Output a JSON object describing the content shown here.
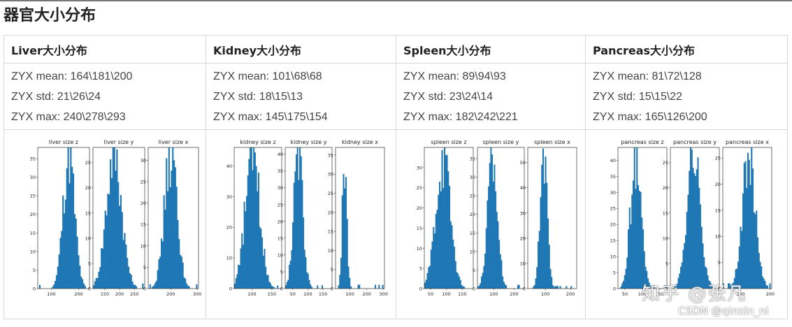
{
  "page": {
    "title": "器官大小分布"
  },
  "colors": {
    "bar": "#1f77b4",
    "axis": "#333333",
    "grid_border": "#d8d8d8"
  },
  "organs": [
    {
      "header": "Liver大小分布",
      "stats": [
        "ZYX mean: 164\\181\\200",
        "ZYX std: 21\\26\\24",
        "ZYX max: 240\\278\\293"
      ]
    },
    {
      "header": "Kidney大小分布",
      "stats": [
        "ZYX mean: 101\\68\\68",
        "ZYX std: 18\\15\\13",
        "ZYX max: 145\\175\\154"
      ]
    },
    {
      "header": "Spleen大小分布",
      "stats": [
        "ZYX mean: 89\\94\\93",
        "ZYX std: 23\\24\\14",
        "ZYX max: 182\\242\\221"
      ]
    },
    {
      "header": "Pancreas大小分布",
      "stats": [
        "ZYX mean: 81\\72\\128",
        "ZYX std: 15\\15\\22",
        "ZYX max: 165\\126\\200"
      ]
    }
  ],
  "chart_data": [
    {
      "type": "bar",
      "title": "liver size z",
      "xticks": [
        100,
        200
      ],
      "yticks": [
        0,
        5,
        10,
        15,
        20,
        25,
        30,
        35
      ],
      "xlim": [
        50,
        240
      ],
      "ylim": [
        0,
        38
      ],
      "mean": 164,
      "std": 21,
      "peak": 36
    },
    {
      "type": "bar",
      "title": "liver size y",
      "xticks": [
        150,
        200,
        250
      ],
      "yticks": [
        0,
        5,
        10,
        15,
        20,
        25
      ],
      "xlim": [
        110,
        285
      ],
      "ylim": [
        0,
        28
      ],
      "mean": 181,
      "std": 26,
      "peak": 27
    },
    {
      "type": "bar",
      "title": "liver size x",
      "xticks": [
        200,
        300
      ],
      "yticks": [
        0,
        5,
        10,
        15,
        20,
        25,
        30
      ],
      "xlim": [
        115,
        305
      ],
      "ylim": [
        0,
        33
      ],
      "mean": 200,
      "std": 24,
      "peak": 31
    },
    {
      "type": "bar",
      "title": "kidney size z",
      "xticks": [
        100,
        150
      ],
      "yticks": [
        0,
        10,
        20,
        30,
        40
      ],
      "xlim": [
        55,
        175
      ],
      "ylim": [
        0,
        46
      ],
      "mean": 101,
      "std": 18,
      "peak": 44
    },
    {
      "type": "bar",
      "title": "kidney size y",
      "xticks": [
        50,
        100,
        150
      ],
      "yticks": [
        0,
        5,
        10,
        15,
        20,
        25,
        30,
        35,
        40
      ],
      "xlim": [
        25,
        180
      ],
      "ylim": [
        0,
        42
      ],
      "mean": 68,
      "std": 15,
      "peak": 40
    },
    {
      "type": "bar",
      "title": "kidney size x",
      "xticks": [
        100,
        200,
        300
      ],
      "yticks": [
        0,
        5,
        10,
        15,
        20,
        25,
        30,
        35
      ],
      "xlim": [
        15,
        305
      ],
      "ylim": [
        0,
        37
      ],
      "mean": 68,
      "std": 13,
      "peak": 35
    },
    {
      "type": "bar",
      "title": "spleen size z",
      "xticks": [
        50,
        100,
        150
      ],
      "yticks": [
        0,
        5,
        10,
        15,
        20,
        25,
        30
      ],
      "xlim": [
        30,
        185
      ],
      "ylim": [
        0,
        35
      ],
      "mean": 89,
      "std": 23,
      "peak": 32
    },
    {
      "type": "bar",
      "title": "spleen size y",
      "xticks": [
        100,
        200
      ],
      "yticks": [
        0,
        5,
        10,
        15,
        20,
        25,
        30,
        35
      ],
      "xlim": [
        20,
        250
      ],
      "ylim": [
        0,
        38
      ],
      "mean": 94,
      "std": 24,
      "peak": 35
    },
    {
      "type": "bar",
      "title": "spleen size x",
      "xticks": [
        100,
        200
      ],
      "yticks": [
        0,
        10,
        20,
        30,
        40,
        50
      ],
      "xlim": [
        30,
        225
      ],
      "ylim": [
        0,
        56
      ],
      "mean": 93,
      "std": 14,
      "peak": 53
    },
    {
      "type": "bar",
      "title": "pancreas size z",
      "xticks": [
        50,
        100,
        150
      ],
      "yticks": [
        0,
        5,
        10,
        15,
        20,
        25,
        30,
        35,
        40
      ],
      "xlim": [
        30,
        170
      ],
      "ylim": [
        0,
        44
      ],
      "mean": 81,
      "std": 15,
      "peak": 41
    },
    {
      "type": "bar",
      "title": "pancreas size y",
      "xticks": [],
      "yticks": [
        0,
        5,
        10,
        15,
        20,
        25
      ],
      "xlim": [
        20,
        130
      ],
      "ylim": [
        0,
        28
      ],
      "mean": 72,
      "std": 15,
      "peak": 26
    },
    {
      "type": "bar",
      "title": "pancreas size x",
      "xticks": [
        100,
        200
      ],
      "yticks": [
        0,
        5,
        10,
        15,
        20,
        25
      ],
      "xlim": [
        40,
        205
      ],
      "ylim": [
        0,
        27
      ],
      "mean": 128,
      "std": 22,
      "peak": 25
    }
  ],
  "overlay": {
    "watermark": "知乎 @张凡",
    "credit": "CSDN @qinxin_ni"
  }
}
